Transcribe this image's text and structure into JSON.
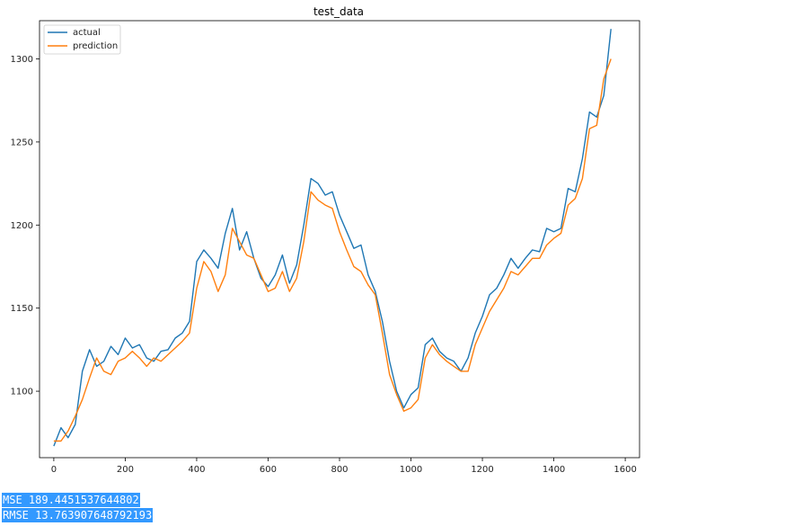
{
  "chart_data": {
    "type": "line",
    "title": "test_data",
    "xlabel": "",
    "ylabel": "",
    "xlim": [
      -40,
      1640
    ],
    "ylim": [
      1060,
      1323
    ],
    "x_ticks": [
      0,
      200,
      400,
      600,
      800,
      1000,
      1200,
      1400,
      1600
    ],
    "y_ticks": [
      1100,
      1150,
      1200,
      1250,
      1300
    ],
    "grid": false,
    "legend": {
      "position": "upper-left",
      "entries": [
        "actual",
        "prediction"
      ]
    },
    "series": [
      {
        "name": "actual",
        "color": "#1f77b4",
        "points": [
          [
            0,
            1067
          ],
          [
            20,
            1078
          ],
          [
            40,
            1072
          ],
          [
            60,
            1080
          ],
          [
            80,
            1112
          ],
          [
            100,
            1125
          ],
          [
            120,
            1115
          ],
          [
            140,
            1118
          ],
          [
            160,
            1127
          ],
          [
            180,
            1122
          ],
          [
            200,
            1132
          ],
          [
            220,
            1126
          ],
          [
            240,
            1128
          ],
          [
            260,
            1120
          ],
          [
            280,
            1118
          ],
          [
            300,
            1124
          ],
          [
            320,
            1125
          ],
          [
            340,
            1132
          ],
          [
            360,
            1135
          ],
          [
            380,
            1142
          ],
          [
            400,
            1178
          ],
          [
            420,
            1185
          ],
          [
            440,
            1180
          ],
          [
            460,
            1174
          ],
          [
            480,
            1195
          ],
          [
            500,
            1210
          ],
          [
            520,
            1185
          ],
          [
            540,
            1196
          ],
          [
            560,
            1180
          ],
          [
            580,
            1168
          ],
          [
            600,
            1163
          ],
          [
            620,
            1170
          ],
          [
            640,
            1182
          ],
          [
            660,
            1165
          ],
          [
            680,
            1176
          ],
          [
            700,
            1200
          ],
          [
            720,
            1228
          ],
          [
            740,
            1225
          ],
          [
            760,
            1218
          ],
          [
            780,
            1220
          ],
          [
            800,
            1206
          ],
          [
            820,
            1196
          ],
          [
            840,
            1186
          ],
          [
            860,
            1188
          ],
          [
            880,
            1170
          ],
          [
            900,
            1160
          ],
          [
            920,
            1142
          ],
          [
            940,
            1118
          ],
          [
            960,
            1100
          ],
          [
            980,
            1090
          ],
          [
            1000,
            1098
          ],
          [
            1020,
            1102
          ],
          [
            1040,
            1128
          ],
          [
            1060,
            1132
          ],
          [
            1080,
            1124
          ],
          [
            1100,
            1120
          ],
          [
            1120,
            1118
          ],
          [
            1140,
            1112
          ],
          [
            1160,
            1120
          ],
          [
            1180,
            1135
          ],
          [
            1200,
            1145
          ],
          [
            1220,
            1158
          ],
          [
            1240,
            1162
          ],
          [
            1260,
            1170
          ],
          [
            1280,
            1180
          ],
          [
            1300,
            1174
          ],
          [
            1320,
            1180
          ],
          [
            1340,
            1185
          ],
          [
            1360,
            1184
          ],
          [
            1380,
            1198
          ],
          [
            1400,
            1196
          ],
          [
            1420,
            1198
          ],
          [
            1440,
            1222
          ],
          [
            1460,
            1220
          ],
          [
            1480,
            1240
          ],
          [
            1500,
            1268
          ],
          [
            1520,
            1265
          ],
          [
            1540,
            1278
          ],
          [
            1560,
            1318
          ]
        ]
      },
      {
        "name": "prediction",
        "color": "#ff7f0e",
        "points": [
          [
            0,
            1070
          ],
          [
            20,
            1070
          ],
          [
            40,
            1076
          ],
          [
            60,
            1085
          ],
          [
            80,
            1095
          ],
          [
            100,
            1108
          ],
          [
            120,
            1120
          ],
          [
            140,
            1112
          ],
          [
            160,
            1110
          ],
          [
            180,
            1118
          ],
          [
            200,
            1120
          ],
          [
            220,
            1124
          ],
          [
            240,
            1120
          ],
          [
            260,
            1115
          ],
          [
            280,
            1120
          ],
          [
            300,
            1118
          ],
          [
            320,
            1122
          ],
          [
            340,
            1126
          ],
          [
            360,
            1130
          ],
          [
            380,
            1135
          ],
          [
            400,
            1162
          ],
          [
            420,
            1178
          ],
          [
            440,
            1172
          ],
          [
            460,
            1160
          ],
          [
            480,
            1170
          ],
          [
            500,
            1198
          ],
          [
            520,
            1190
          ],
          [
            540,
            1182
          ],
          [
            560,
            1180
          ],
          [
            580,
            1170
          ],
          [
            600,
            1160
          ],
          [
            620,
            1162
          ],
          [
            640,
            1172
          ],
          [
            660,
            1160
          ],
          [
            680,
            1168
          ],
          [
            700,
            1190
          ],
          [
            720,
            1220
          ],
          [
            740,
            1215
          ],
          [
            760,
            1212
          ],
          [
            780,
            1210
          ],
          [
            800,
            1196
          ],
          [
            820,
            1185
          ],
          [
            840,
            1175
          ],
          [
            860,
            1172
          ],
          [
            880,
            1164
          ],
          [
            900,
            1158
          ],
          [
            920,
            1135
          ],
          [
            940,
            1110
          ],
          [
            960,
            1098
          ],
          [
            980,
            1088
          ],
          [
            1000,
            1090
          ],
          [
            1020,
            1095
          ],
          [
            1040,
            1120
          ],
          [
            1060,
            1128
          ],
          [
            1080,
            1122
          ],
          [
            1100,
            1118
          ],
          [
            1120,
            1115
          ],
          [
            1140,
            1112
          ],
          [
            1160,
            1112
          ],
          [
            1180,
            1128
          ],
          [
            1200,
            1138
          ],
          [
            1220,
            1148
          ],
          [
            1240,
            1155
          ],
          [
            1260,
            1162
          ],
          [
            1280,
            1172
          ],
          [
            1300,
            1170
          ],
          [
            1320,
            1175
          ],
          [
            1340,
            1180
          ],
          [
            1360,
            1180
          ],
          [
            1380,
            1188
          ],
          [
            1400,
            1192
          ],
          [
            1420,
            1195
          ],
          [
            1440,
            1212
          ],
          [
            1460,
            1216
          ],
          [
            1480,
            1228
          ],
          [
            1500,
            1258
          ],
          [
            1520,
            1260
          ],
          [
            1540,
            1288
          ],
          [
            1560,
            1300
          ]
        ]
      }
    ]
  },
  "metrics": {
    "mse": "MSE 189.4451537644802",
    "rmse": "RMSE 13.763907648792193"
  }
}
